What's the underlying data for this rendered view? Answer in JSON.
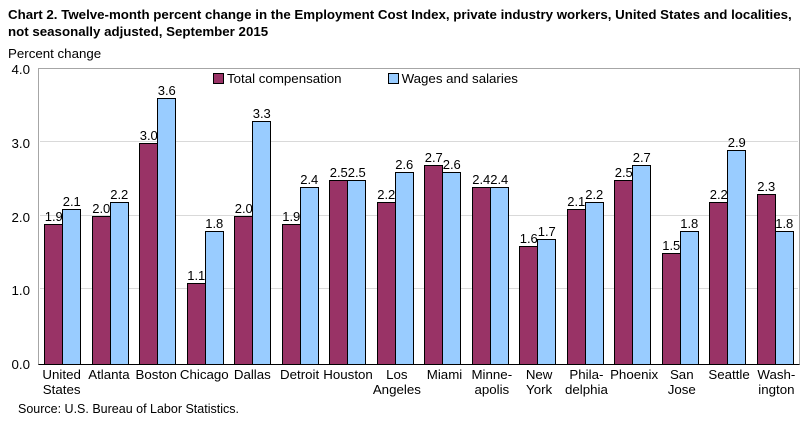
{
  "title": "Chart 2. Twelve-month percent change in the Employment Cost Index, private industry workers, United States and localities, not seasonally adjusted, September 2015",
  "axis_unit_label": "Percent change",
  "source": "Source: U.S. Bureau of Labor Statistics.",
  "legend": [
    {
      "label": "Total compensation",
      "color": "#993366"
    },
    {
      "label": "Wages and salaries",
      "color": "#99CCFF"
    }
  ],
  "colors": {
    "total_compensation": "#993366",
    "wages_and_salaries": "#99CCFF",
    "gridline": "#d9d9d9",
    "plot_border": "#a6a6a6",
    "axis_line": "#000000"
  },
  "chart_data": {
    "type": "bar",
    "title": "Chart 2. Twelve-month percent change in the Employment Cost Index, private industry workers, United States and localities, not seasonally adjusted, September 2015",
    "xlabel": "",
    "ylabel": "Percent change",
    "ylim": [
      0.0,
      4.0
    ],
    "yticks": [
      0.0,
      1.0,
      2.0,
      3.0,
      4.0
    ],
    "grid": true,
    "legend_position": "top-inside",
    "categories": [
      "United States",
      "Atlanta",
      "Boston",
      "Chicago",
      "Dallas",
      "Detroit",
      "Houston",
      "Los Angeles",
      "Miami",
      "Minneapolis",
      "New York",
      "Philadelphia",
      "Phoenix",
      "San Jose",
      "Seattle",
      "Washington"
    ],
    "category_display": [
      "United\nStates",
      "Atlanta",
      "Boston",
      "Chicago",
      "Dallas",
      "Detroit",
      "Houston",
      "Los\nAngeles",
      "Miami",
      "Minne-\napolis",
      "New\nYork",
      "Phila-\ndelphia",
      "Phoenix",
      "San\nJose",
      "Seattle",
      "Wash-\nington"
    ],
    "series": [
      {
        "name": "Total compensation",
        "color": "#993366",
        "values": [
          1.9,
          2.0,
          3.0,
          1.1,
          2.0,
          1.9,
          2.5,
          2.2,
          2.7,
          2.4,
          1.6,
          2.1,
          2.5,
          1.5,
          2.2,
          2.3
        ]
      },
      {
        "name": "Wages and salaries",
        "color": "#99CCFF",
        "values": [
          2.1,
          2.2,
          3.6,
          1.8,
          3.3,
          2.4,
          2.5,
          2.6,
          2.6,
          2.4,
          1.7,
          2.2,
          2.7,
          1.8,
          2.9,
          1.8
        ]
      }
    ]
  }
}
